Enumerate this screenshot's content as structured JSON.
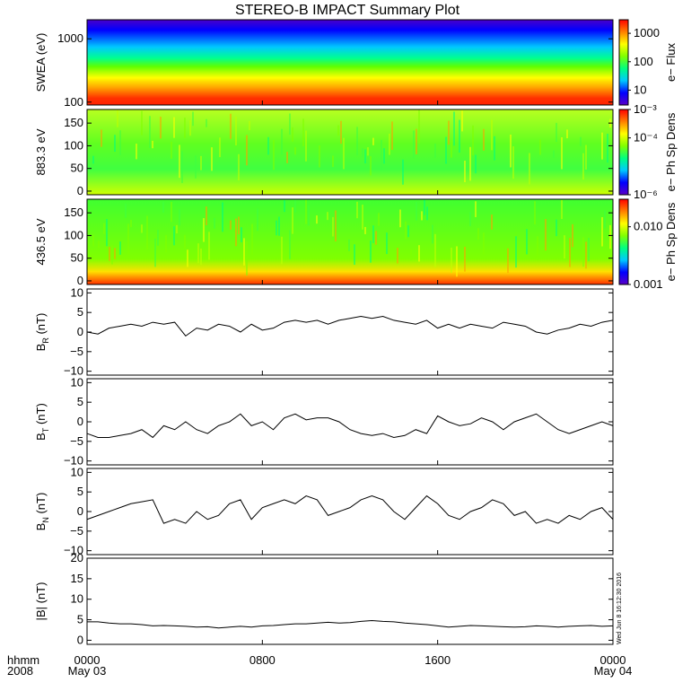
{
  "title": "STEREO-B IMPACT Summary Plot",
  "timestamp_label": "Wed Jun  8 16:12:30 2016",
  "time_axis": {
    "row_label_top": "hhmm",
    "row_label_bottom": "2008",
    "ticks": [
      {
        "hours": 0,
        "label": "0000",
        "sub": "May 03"
      },
      {
        "hours": 8,
        "label": "0800",
        "sub": ""
      },
      {
        "hours": 16,
        "label": "1600",
        "sub": ""
      },
      {
        "hours": 24,
        "label": "0000",
        "sub": "May 04"
      }
    ],
    "range_hours": [
      0,
      24
    ]
  },
  "chart_data": [
    {
      "id": "swea",
      "type": "heatmap",
      "ylabel": "SWEA (eV)",
      "ylog": true,
      "ylim": [
        90,
        2000
      ],
      "yticks": [
        {
          "v": 100,
          "label": "100"
        },
        {
          "v": 1000,
          "label": "1000"
        }
      ],
      "colorbar": {
        "label": "e− Flux",
        "log": true,
        "range": [
          3,
          3000
        ],
        "ticks": [
          {
            "v": 10,
            "label": "10"
          },
          {
            "v": 100,
            "label": "100"
          },
          {
            "v": 1000,
            "label": "1000"
          }
        ]
      },
      "description_values": {
        "flux_at_100eV": 2000,
        "flux_at_1000eV": 5
      }
    },
    {
      "id": "pad883",
      "type": "heatmap",
      "ylabel": "883.3 eV",
      "ylim": [
        -8,
        180
      ],
      "yticks": [
        {
          "v": 0,
          "label": "0"
        },
        {
          "v": 50,
          "label": "50"
        },
        {
          "v": 100,
          "label": "100"
        },
        {
          "v": 150,
          "label": "150"
        }
      ],
      "colorbar": {
        "label": "e− Ph Sp Dens",
        "log": true,
        "range": [
          1e-06,
          0.001
        ],
        "ticks": [
          {
            "v": 1e-06,
            "label": "10⁻⁶"
          },
          {
            "v": 0.0001,
            "label": "10⁻⁴"
          },
          {
            "v": 0.001,
            "label": "10⁻³"
          }
        ]
      }
    },
    {
      "id": "pad436",
      "type": "heatmap",
      "ylabel": "436.5 eV",
      "ylim": [
        -8,
        180
      ],
      "yticks": [
        {
          "v": 0,
          "label": "0"
        },
        {
          "v": 50,
          "label": "50"
        },
        {
          "v": 100,
          "label": "100"
        },
        {
          "v": 150,
          "label": "150"
        }
      ],
      "colorbar": {
        "label": "e− Ph Sp Dens",
        "log": true,
        "range": [
          0.001,
          0.03
        ],
        "ticks": [
          {
            "v": 0.001,
            "label": "0.001"
          },
          {
            "v": 0.01,
            "label": "0.010"
          }
        ]
      }
    },
    {
      "id": "br",
      "type": "line",
      "ylabel_main": "B",
      "ylabel_sub": "R",
      "ylabel_unit": "(nT)",
      "ylim": [
        -11,
        11
      ],
      "yticks": [
        {
          "v": -10,
          "label": "−10"
        },
        {
          "v": -5,
          "label": "−5"
        },
        {
          "v": 0,
          "label": "0"
        },
        {
          "v": 5,
          "label": "5"
        },
        {
          "v": 10,
          "label": "10"
        }
      ],
      "x_hours": [
        0,
        0.5,
        1,
        1.5,
        2,
        2.5,
        3,
        3.5,
        4,
        4.5,
        5,
        5.5,
        6,
        6.5,
        7,
        7.5,
        8,
        8.5,
        9,
        9.5,
        10,
        10.5,
        11,
        11.5,
        12,
        12.5,
        13,
        13.5,
        14,
        14.5,
        15,
        15.5,
        16,
        16.5,
        17,
        17.5,
        18,
        18.5,
        19,
        19.5,
        20,
        20.5,
        21,
        21.5,
        22,
        22.5,
        23,
        23.5,
        24
      ],
      "y": [
        0,
        -0.5,
        1,
        1.5,
        2,
        1.5,
        2.5,
        2,
        2.5,
        -1,
        1,
        0.5,
        2,
        1.5,
        0,
        2,
        0.5,
        1,
        2.5,
        3,
        2.5,
        3,
        2,
        3,
        3.5,
        4,
        3.5,
        4,
        3,
        2.5,
        2,
        3,
        1,
        2,
        1,
        2,
        1.5,
        1,
        2.5,
        2,
        1.5,
        0,
        -0.5,
        0.5,
        1,
        2,
        1.5,
        2.5,
        3
      ]
    },
    {
      "id": "bt",
      "type": "line",
      "ylabel_main": "B",
      "ylabel_sub": "T",
      "ylabel_unit": "(nT)",
      "ylim": [
        -11,
        11
      ],
      "yticks": [
        {
          "v": -10,
          "label": "−10"
        },
        {
          "v": -5,
          "label": "−5"
        },
        {
          "v": 0,
          "label": "0"
        },
        {
          "v": 5,
          "label": "5"
        },
        {
          "v": 10,
          "label": "10"
        }
      ],
      "x_hours": [
        0,
        0.5,
        1,
        1.5,
        2,
        2.5,
        3,
        3.5,
        4,
        4.5,
        5,
        5.5,
        6,
        6.5,
        7,
        7.5,
        8,
        8.5,
        9,
        9.5,
        10,
        10.5,
        11,
        11.5,
        12,
        12.5,
        13,
        13.5,
        14,
        14.5,
        15,
        15.5,
        16,
        16.5,
        17,
        17.5,
        18,
        18.5,
        19,
        19.5,
        20,
        20.5,
        21,
        21.5,
        22,
        22.5,
        23,
        23.5,
        24
      ],
      "y": [
        -3,
        -4,
        -4,
        -3.5,
        -3,
        -2,
        -4,
        -1,
        -2,
        0,
        -2,
        -3,
        -1,
        0,
        2,
        -1,
        0,
        -2,
        1,
        2,
        0.5,
        1,
        1,
        0,
        -2,
        -3,
        -3.5,
        -3,
        -4,
        -3.5,
        -2,
        -3,
        1.5,
        0,
        -1,
        -0.5,
        1,
        0,
        -2,
        0,
        1,
        2,
        0,
        -2,
        -3,
        -2,
        -1,
        0,
        -1
      ]
    },
    {
      "id": "bn",
      "type": "line",
      "ylabel_main": "B",
      "ylabel_sub": "N",
      "ylabel_unit": "(nT)",
      "ylim": [
        -11,
        11
      ],
      "yticks": [
        {
          "v": -10,
          "label": "−10"
        },
        {
          "v": -5,
          "label": "−5"
        },
        {
          "v": 0,
          "label": "0"
        },
        {
          "v": 5,
          "label": "5"
        },
        {
          "v": 10,
          "label": "10"
        }
      ],
      "x_hours": [
        0,
        0.5,
        1,
        1.5,
        2,
        2.5,
        3,
        3.5,
        4,
        4.5,
        5,
        5.5,
        6,
        6.5,
        7,
        7.5,
        8,
        8.5,
        9,
        9.5,
        10,
        10.5,
        11,
        11.5,
        12,
        12.5,
        13,
        13.5,
        14,
        14.5,
        15,
        15.5,
        16,
        16.5,
        17,
        17.5,
        18,
        18.5,
        19,
        19.5,
        20,
        20.5,
        21,
        21.5,
        22,
        22.5,
        23,
        23.5,
        24
      ],
      "y": [
        -2,
        -1,
        0,
        1,
        2,
        2.5,
        3,
        -3,
        -2,
        -3,
        0,
        -2,
        -1,
        2,
        3,
        -2,
        1,
        2,
        3,
        2,
        4,
        3,
        -1,
        0,
        1,
        3,
        4,
        3,
        0,
        -2,
        1,
        4,
        2,
        -1,
        -2,
        0,
        1,
        3,
        2,
        -1,
        0,
        -3,
        -2,
        -3,
        -1,
        -2,
        0,
        1,
        -2
      ]
    },
    {
      "id": "bmag",
      "type": "line",
      "ylabel_main": "|B|",
      "ylabel_sub": "",
      "ylabel_unit": "(nT)",
      "ylim": [
        -1,
        20
      ],
      "yticks": [
        {
          "v": 0,
          "label": "0"
        },
        {
          "v": 5,
          "label": "5"
        },
        {
          "v": 10,
          "label": "10"
        },
        {
          "v": 15,
          "label": "15"
        },
        {
          "v": 20,
          "label": "20"
        }
      ],
      "x_hours": [
        0,
        0.5,
        1,
        1.5,
        2,
        2.5,
        3,
        3.5,
        4,
        4.5,
        5,
        5.5,
        6,
        6.5,
        7,
        7.5,
        8,
        8.5,
        9,
        9.5,
        10,
        10.5,
        11,
        11.5,
        12,
        12.5,
        13,
        13.5,
        14,
        14.5,
        15,
        15.5,
        16,
        16.5,
        17,
        17.5,
        18,
        18.5,
        19,
        19.5,
        20,
        20.5,
        21,
        21.5,
        22,
        22.5,
        23,
        23.5,
        24
      ],
      "y": [
        4.5,
        4.5,
        4.2,
        4,
        4,
        3.8,
        3.5,
        3.6,
        3.5,
        3.4,
        3.2,
        3.3,
        3,
        3.2,
        3.4,
        3.2,
        3.5,
        3.6,
        3.8,
        4,
        4,
        4.2,
        4.4,
        4.2,
        4.3,
        4.6,
        4.8,
        4.6,
        4.5,
        4.2,
        4,
        3.8,
        3.5,
        3.2,
        3.4,
        3.6,
        3.5,
        3.4,
        3.3,
        3.2,
        3.3,
        3.5,
        3.4,
        3.2,
        3.4,
        3.5,
        3.6,
        3.4,
        3.5
      ]
    }
  ]
}
